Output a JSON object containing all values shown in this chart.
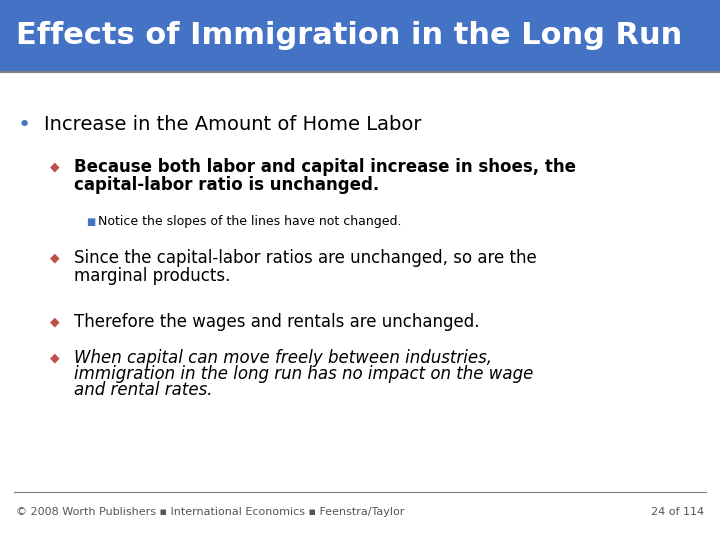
{
  "title": "Effects of Immigration in the Long Run",
  "title_bg_color": "#4472C4",
  "title_text_color": "#FFFFFF",
  "title_fontsize": 22,
  "slide_bg_color": "#FFFFFF",
  "bullet1": "Increase in the Amount of Home Labor",
  "bullet1_color": "#4472C4",
  "bullet1_marker": "•",
  "bullet1_fontsize": 14,
  "bullet2a_line1": "Because both labor and capital increase in shoes, the",
  "bullet2a_line2": "capital-labor ratio is unchanged.",
  "bullet2b_line1": "Since the capital-labor ratios are unchanged, so are the",
  "bullet2b_line2": "marginal products.",
  "bullet2c": "Therefore the wages and rentals are unchanged.",
  "bullet2d_line1": "When capital can move freely between industries,",
  "bullet2d_line2": "immigration in the long run has no impact on the wage",
  "bullet2d_line3": "and rental rates.",
  "bullet2_fontsize": 12,
  "bullet2_marker_color": "#C0504D",
  "sub_bullet": "Notice the slopes of the lines have not changed.",
  "sub_bullet_color": "#4472C4",
  "sub_bullet_fontsize": 9,
  "footer": "© 2008 Worth Publishers ▪ International Economics ▪ Feenstra/Taylor",
  "page_num": "24 of 114",
  "footer_color": "#555555",
  "footer_fontsize": 8,
  "line_color": "#808080"
}
